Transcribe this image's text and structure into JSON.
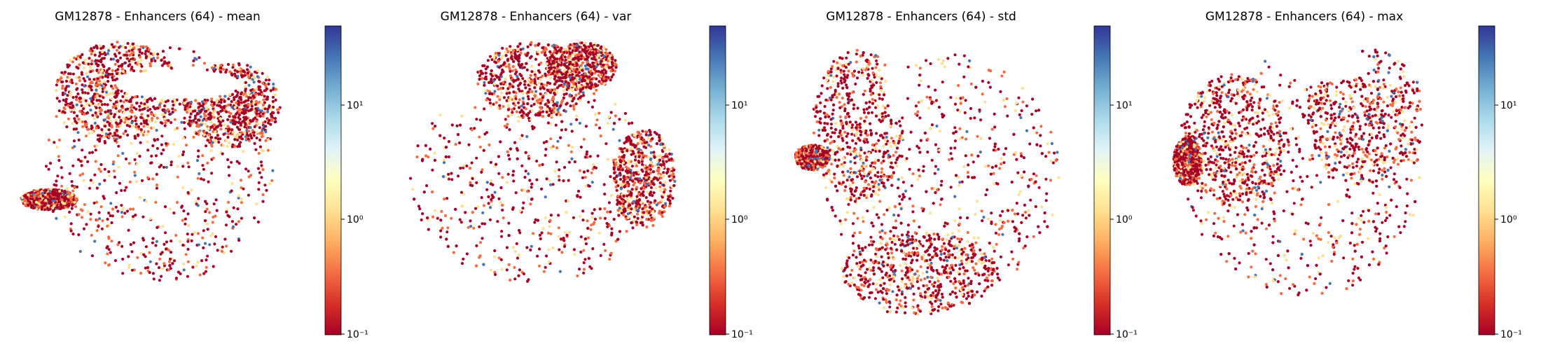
{
  "figure": {
    "panel_titles": [
      "GM12878 - Enhancers (64) - mean",
      "GM12878 - Enhancers (64) - var",
      "GM12878 - Enhancers (64) - std",
      "GM12878 - Enhancers (64) - max"
    ],
    "colorbar_tick_labels": [
      "10¹",
      "10⁰",
      "10⁻¹"
    ]
  },
  "chart_data": [
    {
      "type": "scatter",
      "title": "GM12878 - Enhancers (64) - mean",
      "xlabel": "",
      "ylabel": "",
      "axes_visible": false,
      "colorbar": {
        "scale": "log",
        "colormap": "RdYlBu",
        "range": [
          0.1,
          50
        ],
        "ticks": [
          10,
          1,
          0.1
        ]
      },
      "point_color_mix": [
        {
          "value": 0.1,
          "share": 0.55
        },
        {
          "value": 0.3,
          "share": 0.25
        },
        {
          "value": 1.0,
          "share": 0.15
        },
        {
          "value": 20,
          "share": 0.05
        }
      ]
    },
    {
      "type": "scatter",
      "title": "GM12878 - Enhancers (64) - var",
      "xlabel": "",
      "ylabel": "",
      "axes_visible": false,
      "colorbar": {
        "scale": "log",
        "colormap": "RdYlBu",
        "range": [
          0.1,
          50
        ],
        "ticks": [
          10,
          1,
          0.1
        ]
      },
      "point_color_mix": [
        {
          "value": 0.1,
          "share": 0.55
        },
        {
          "value": 0.3,
          "share": 0.25
        },
        {
          "value": 1.0,
          "share": 0.15
        },
        {
          "value": 20,
          "share": 0.05
        }
      ]
    },
    {
      "type": "scatter",
      "title": "GM12878 - Enhancers (64) - std",
      "xlabel": "",
      "ylabel": "",
      "axes_visible": false,
      "colorbar": {
        "scale": "log",
        "colormap": "RdYlBu",
        "range": [
          0.1,
          50
        ],
        "ticks": [
          10,
          1,
          0.1
        ]
      },
      "point_color_mix": [
        {
          "value": 0.1,
          "share": 0.55
        },
        {
          "value": 0.3,
          "share": 0.25
        },
        {
          "value": 1.0,
          "share": 0.15
        },
        {
          "value": 20,
          "share": 0.05
        }
      ]
    },
    {
      "type": "scatter",
      "title": "GM12878 - Enhancers (64) - max",
      "xlabel": "",
      "ylabel": "",
      "axes_visible": false,
      "colorbar": {
        "scale": "log",
        "colormap": "RdYlBu",
        "range": [
          0.1,
          50
        ],
        "ticks": [
          10,
          1,
          0.1
        ]
      },
      "point_color_mix": [
        {
          "value": 0.1,
          "share": 0.55
        },
        {
          "value": 0.3,
          "share": 0.25
        },
        {
          "value": 1.0,
          "share": 0.15
        },
        {
          "value": 20,
          "share": 0.05
        }
      ]
    }
  ],
  "colors": {
    "colormap_stops": [
      "#a50026",
      "#d73027",
      "#f46d43",
      "#fdae61",
      "#fee090",
      "#ffffbf",
      "#e0f3f8",
      "#abd9e9",
      "#74add1",
      "#4575b4",
      "#313695"
    ]
  }
}
